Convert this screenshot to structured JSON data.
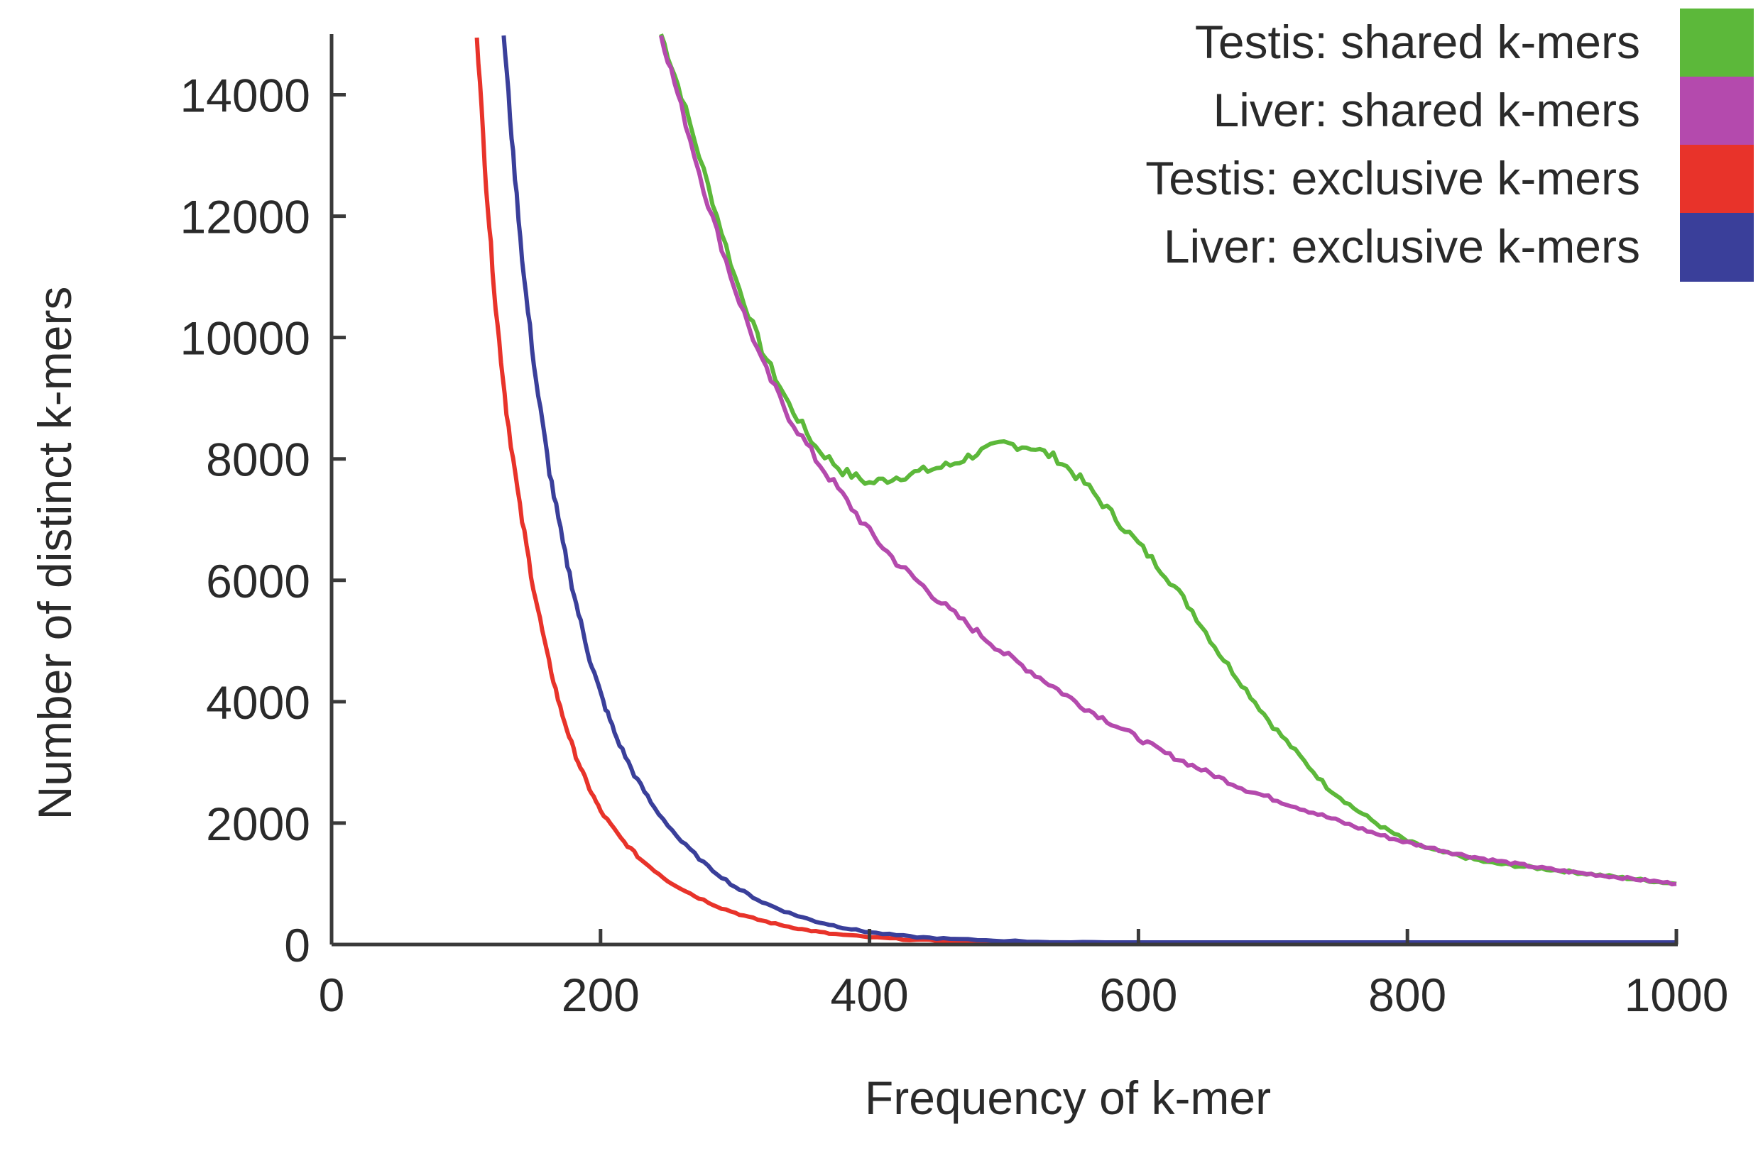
{
  "chart_data": {
    "type": "line",
    "title": "",
    "xlabel": "Frequency of k-mer",
    "ylabel": "Number of distinct k-mers",
    "xlim": [
      0,
      1000
    ],
    "ylim": [
      0,
      15000
    ],
    "x_ticks": [
      0,
      200,
      400,
      600,
      800,
      1000
    ],
    "y_ticks": [
      0,
      2000,
      4000,
      6000,
      8000,
      10000,
      12000,
      14000
    ],
    "x_tick_labels": [
      "0",
      "200",
      "400",
      "600",
      "800",
      "1000"
    ],
    "y_tick_labels": [
      "0",
      "2000",
      "4000",
      "6000",
      "8000",
      "10000",
      "12000",
      "14000"
    ],
    "grid": false,
    "legend_position": "top-right",
    "series": [
      {
        "name": "Testis: shared k-mers",
        "color": "#5cb83a",
        "points": [
          [
            245,
            15000
          ],
          [
            260,
            14000
          ],
          [
            280,
            12500
          ],
          [
            300,
            11000
          ],
          [
            320,
            9800
          ],
          [
            340,
            8900
          ],
          [
            360,
            8200
          ],
          [
            380,
            7800
          ],
          [
            400,
            7600
          ],
          [
            420,
            7700
          ],
          [
            440,
            7800
          ],
          [
            460,
            7900
          ],
          [
            480,
            8100
          ],
          [
            500,
            8250
          ],
          [
            520,
            8200
          ],
          [
            540,
            8000
          ],
          [
            560,
            7600
          ],
          [
            580,
            7100
          ],
          [
            600,
            6600
          ],
          [
            620,
            6100
          ],
          [
            640,
            5500
          ],
          [
            660,
            4800
          ],
          [
            680,
            4200
          ],
          [
            700,
            3600
          ],
          [
            720,
            3100
          ],
          [
            740,
            2600
          ],
          [
            760,
            2250
          ],
          [
            780,
            1950
          ],
          [
            800,
            1700
          ],
          [
            820,
            1550
          ],
          [
            840,
            1450
          ],
          [
            860,
            1350
          ],
          [
            880,
            1300
          ],
          [
            900,
            1250
          ],
          [
            920,
            1200
          ],
          [
            940,
            1150
          ],
          [
            960,
            1100
          ],
          [
            980,
            1050
          ],
          [
            1000,
            1000
          ]
        ]
      },
      {
        "name": "Liver: shared k-mers",
        "color": "#b44aad",
        "points": [
          [
            245,
            15000
          ],
          [
            260,
            13800
          ],
          [
            280,
            12200
          ],
          [
            300,
            10800
          ],
          [
            320,
            9600
          ],
          [
            340,
            8700
          ],
          [
            360,
            8000
          ],
          [
            380,
            7400
          ],
          [
            400,
            6800
          ],
          [
            420,
            6300
          ],
          [
            440,
            5900
          ],
          [
            460,
            5500
          ],
          [
            480,
            5150
          ],
          [
            500,
            4800
          ],
          [
            520,
            4500
          ],
          [
            540,
            4200
          ],
          [
            560,
            3900
          ],
          [
            580,
            3650
          ],
          [
            600,
            3400
          ],
          [
            620,
            3150
          ],
          [
            640,
            2950
          ],
          [
            660,
            2750
          ],
          [
            680,
            2550
          ],
          [
            700,
            2400
          ],
          [
            720,
            2250
          ],
          [
            740,
            2100
          ],
          [
            760,
            1950
          ],
          [
            780,
            1800
          ],
          [
            800,
            1680
          ],
          [
            820,
            1580
          ],
          [
            840,
            1480
          ],
          [
            860,
            1400
          ],
          [
            880,
            1330
          ],
          [
            900,
            1260
          ],
          [
            920,
            1200
          ],
          [
            940,
            1150
          ],
          [
            960,
            1100
          ],
          [
            980,
            1050
          ],
          [
            1000,
            1000
          ]
        ]
      },
      {
        "name": "Testis: exclusive k-mers",
        "color": "#e8332a",
        "points": [
          [
            108,
            15000
          ],
          [
            115,
            12500
          ],
          [
            122,
            10500
          ],
          [
            130,
            8800
          ],
          [
            140,
            7200
          ],
          [
            150,
            5900
          ],
          [
            160,
            4800
          ],
          [
            170,
            3900
          ],
          [
            180,
            3200
          ],
          [
            190,
            2650
          ],
          [
            200,
            2200
          ],
          [
            215,
            1750
          ],
          [
            230,
            1400
          ],
          [
            250,
            1050
          ],
          [
            270,
            800
          ],
          [
            290,
            600
          ],
          [
            310,
            450
          ],
          [
            330,
            340
          ],
          [
            350,
            250
          ],
          [
            370,
            180
          ],
          [
            400,
            120
          ],
          [
            430,
            80
          ],
          [
            460,
            55
          ],
          [
            500,
            35
          ],
          [
            550,
            20
          ],
          [
            600,
            12
          ],
          [
            700,
            6
          ],
          [
            800,
            3
          ],
          [
            900,
            2
          ],
          [
            1000,
            1
          ]
        ]
      },
      {
        "name": "Liver: exclusive k-mers",
        "color": "#3a3f9a",
        "points": [
          [
            128,
            15000
          ],
          [
            135,
            13000
          ],
          [
            143,
            11000
          ],
          [
            152,
            9300
          ],
          [
            162,
            7800
          ],
          [
            172,
            6600
          ],
          [
            182,
            5600
          ],
          [
            192,
            4700
          ],
          [
            202,
            4000
          ],
          [
            212,
            3400
          ],
          [
            225,
            2800
          ],
          [
            240,
            2250
          ],
          [
            260,
            1700
          ],
          [
            280,
            1280
          ],
          [
            300,
            950
          ],
          [
            320,
            700
          ],
          [
            340,
            520
          ],
          [
            360,
            380
          ],
          [
            380,
            280
          ],
          [
            400,
            200
          ],
          [
            430,
            130
          ],
          [
            460,
            90
          ],
          [
            500,
            60
          ],
          [
            550,
            35
          ],
          [
            600,
            20
          ],
          [
            700,
            10
          ],
          [
            800,
            5
          ],
          [
            900,
            3
          ],
          [
            1000,
            2
          ]
        ]
      }
    ]
  }
}
